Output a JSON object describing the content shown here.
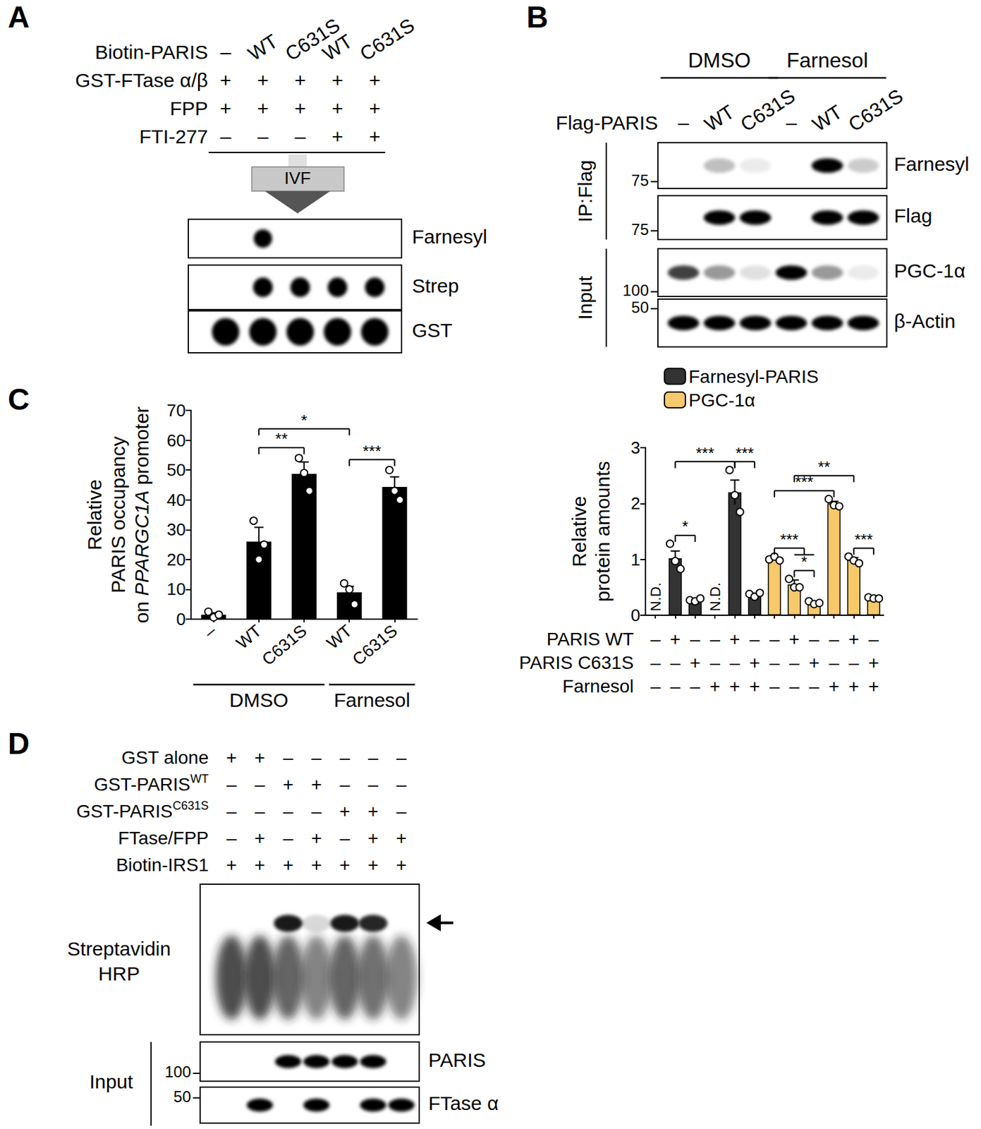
{
  "panels": {
    "A": {
      "letter": "A",
      "conditions": [
        {
          "name": "Biotin-PARIS",
          "values": [
            "–",
            "WT",
            "C631S",
            "WT",
            "C631S"
          ]
        },
        {
          "name": "GST-FTase α/β",
          "values": [
            "+",
            "+",
            "+",
            "+",
            "+"
          ]
        },
        {
          "name": "FPP",
          "values": [
            "+",
            "+",
            "+",
            "+",
            "+"
          ]
        },
        {
          "name": "FTI-277",
          "values": [
            "–",
            "–",
            "–",
            "+",
            "+"
          ]
        }
      ],
      "step": "IVF",
      "blots": [
        {
          "label": "Farnesyl",
          "shape": "dot",
          "signal": [
            0,
            1,
            0,
            0,
            0
          ]
        },
        {
          "label": "Strep",
          "shape": "dot",
          "signal": [
            0,
            1,
            1,
            1,
            1
          ]
        },
        {
          "label": "GST",
          "shape": "dot",
          "signal": [
            1,
            1,
            1,
            1,
            1
          ]
        }
      ]
    },
    "B": {
      "letter": "B",
      "groups": [
        {
          "text": "DMSO",
          "lanes": [
            0,
            2
          ]
        },
        {
          "text": "Farnesol",
          "lanes": [
            3,
            5
          ]
        }
      ],
      "conditions": [
        {
          "name": "Flag-PARIS",
          "values": [
            "–",
            "WT",
            "C631S",
            "–",
            "WT",
            "C631S"
          ]
        }
      ],
      "sections": [
        {
          "label": "IP:Flag",
          "blots": [
            {
              "label": "Farnesyl",
              "shape": "band",
              "marker": 75,
              "signal": [
                0,
                0.25,
                0.08,
                0,
                1,
                0.2
              ]
            },
            {
              "label": "Flag",
              "shape": "band",
              "marker": 75,
              "signal": [
                0,
                1,
                1,
                0,
                1,
                1
              ]
            }
          ]
        },
        {
          "label": "Input",
          "blots": [
            {
              "label": "PGC-1α",
              "shape": "band",
              "marker": 100,
              "signal": [
                0.75,
                0.4,
                0.12,
                1,
                0.4,
                0.08
              ]
            },
            {
              "label": "β-Actin",
              "shape": "band",
              "marker": 50,
              "signal": [
                1,
                1,
                1,
                1,
                1,
                1
              ]
            }
          ]
        }
      ]
    },
    "C": {
      "letter": "C"
    },
    "D": {
      "letter": "D",
      "conditions": [
        {
          "name": "GST alone",
          "values": [
            "+",
            "+",
            "–",
            "–",
            "–",
            "–",
            "–"
          ]
        },
        {
          "name": "GST-PARIS",
          "sup": "WT",
          "values": [
            "–",
            "–",
            "+",
            "+",
            "–",
            "–",
            "–"
          ]
        },
        {
          "name": "GST-PARIS",
          "sup": "C631S",
          "values": [
            "–",
            "–",
            "–",
            "–",
            "+",
            "+",
            "–"
          ]
        },
        {
          "name": "FTase/FPP",
          "values": [
            "–",
            "+",
            "–",
            "+",
            "–",
            "+",
            "+"
          ]
        },
        {
          "name": "Biotin-IRS1",
          "values": [
            "+",
            "+",
            "+",
            "+",
            "+",
            "+",
            "+"
          ]
        }
      ],
      "main_blot": {
        "label": [
          "Streptavidin",
          "HRP"
        ],
        "shape": "smear",
        "signal": [
          0.8,
          0.8,
          0.7,
          0.55,
          0.7,
          0.65,
          0.55
        ],
        "band": [
          0,
          0,
          0.9,
          0.15,
          0.9,
          0.85,
          0
        ]
      },
      "input": {
        "label": "Input",
        "blots": [
          {
            "label": "PARIS",
            "shape": "band",
            "marker": 100,
            "signal": [
              0,
              0,
              1,
              1,
              1,
              1,
              0
            ]
          },
          {
            "label": "FTase α",
            "shape": "band",
            "marker": 50,
            "signal": [
              0,
              1,
              0,
              1,
              0,
              1,
              1
            ]
          }
        ]
      }
    }
  },
  "chart_data": [
    {
      "type": "bar",
      "categories": [
        "–",
        "WT",
        "C631S",
        "WT",
        "C631S"
      ],
      "values": [
        1.5,
        26,
        48.7,
        9,
        44.3
      ],
      "errors": [
        0.6,
        4.8,
        4,
        2,
        3.4
      ],
      "points": [
        [
          2.5,
          0.6,
          1.5
        ],
        [
          33,
          20,
          25
        ],
        [
          54,
          49,
          43
        ],
        [
          12,
          10,
          5
        ],
        [
          50,
          43,
          40
        ]
      ],
      "color": "#000000",
      "y_label": [
        [
          {
            "text": "Relative"
          }
        ],
        [
          {
            "text": "PARIS occupancy"
          }
        ],
        [
          {
            "text": "on "
          },
          {
            "text": "PPARGC1A",
            "italic": true
          },
          {
            "text": " promoter"
          }
        ]
      ],
      "ylim": [
        0,
        70
      ],
      "yticks": [
        0,
        10,
        20,
        30,
        40,
        50,
        60,
        70
      ],
      "grid": false,
      "groups": [
        {
          "text": "DMSO",
          "categories": [
            0,
            2
          ]
        },
        {
          "text": "Farnesol",
          "categories": [
            3,
            4
          ]
        }
      ],
      "annotations": [
        {
          "from": 1,
          "to": 2,
          "text": "**"
        },
        {
          "from": 1,
          "to": 3,
          "text": "*"
        },
        {
          "from": 3,
          "to": 4,
          "text": "***"
        }
      ]
    },
    {
      "type": "bar",
      "categories": [
        null,
        null,
        null,
        null,
        null,
        null,
        null,
        null,
        null,
        null,
        null,
        null
      ],
      "series": [
        {
          "name": "Farnesyl-PARIS",
          "color": "#333333",
          "values": [
            null,
            1.02,
            0.27,
            null,
            2.2,
            0.37,
            null,
            null,
            null,
            null,
            null,
            null
          ],
          "value_labels": [
            "N.D.",
            null,
            null,
            "N.D.",
            null,
            null,
            null,
            null,
            null,
            null,
            null,
            null
          ],
          "errors": [
            null,
            0.13,
            0.02,
            null,
            0.22,
            0.02,
            null,
            null,
            null,
            null,
            null,
            null
          ],
          "points": [
            null,
            [
              1.28,
              0.97,
              0.83
            ],
            [
              0.27,
              0.25,
              0.3
            ],
            null,
            [
              2.6,
              2.15,
              1.85
            ],
            [
              0.38,
              0.33,
              0.4
            ],
            null,
            null,
            null,
            null,
            null,
            null
          ]
        },
        {
          "name": "PGC-1α",
          "color": "#F7C96A",
          "values": [
            null,
            null,
            null,
            null,
            null,
            null,
            1.01,
            0.55,
            0.22,
            2.0,
            0.99,
            0.31
          ],
          "errors": [
            null,
            null,
            null,
            null,
            null,
            null,
            0.02,
            0.08,
            0.01,
            0.04,
            0.04,
            0.01
          ],
          "points": [
            null,
            null,
            null,
            null,
            null,
            null,
            [
              1.0,
              1.05,
              0.98
            ],
            [
              0.65,
              0.5,
              0.5
            ],
            [
              0.25,
              0.2,
              0.22
            ],
            [
              2.08,
              1.97,
              1.95
            ],
            [
              1.05,
              0.98,
              0.93
            ],
            [
              0.32,
              0.3,
              0.3
            ]
          ]
        }
      ],
      "y_label": [
        "Relative",
        "protein amounts"
      ],
      "ylim": [
        0,
        3
      ],
      "yticks": [
        0,
        1,
        2,
        3
      ],
      "grid": false,
      "legend": "top-left",
      "conditions": [
        {
          "name": "PARIS WT",
          "values": [
            "–",
            "+",
            "–",
            "–",
            "+",
            "–",
            "–",
            "+",
            "–",
            "–",
            "+",
            "–"
          ]
        },
        {
          "name": "PARIS C631S",
          "values": [
            "–",
            "–",
            "+",
            "–",
            "–",
            "+",
            "–",
            "–",
            "+",
            "–",
            "–",
            "+"
          ]
        },
        {
          "name": "Farnesol",
          "values": [
            "–",
            "–",
            "–",
            "+",
            "+",
            "+",
            "–",
            "–",
            "–",
            "+",
            "+",
            "+"
          ]
        }
      ],
      "annotations": [
        {
          "from": 1,
          "to": 2,
          "text": "*"
        },
        {
          "from": 4,
          "to": 5,
          "text": "***"
        },
        {
          "from": 7,
          "to": 8,
          "text": "*"
        },
        {
          "from": 10,
          "to": 11,
          "text": "***"
        },
        {
          "from": 6,
          "to": [
            7,
            8
          ],
          "text": "***"
        },
        {
          "from": 1,
          "to": 4,
          "text": "***"
        },
        {
          "from": 6,
          "to": 9,
          "text": "***"
        },
        {
          "from": 7,
          "to": 10,
          "text": "**"
        }
      ]
    }
  ]
}
